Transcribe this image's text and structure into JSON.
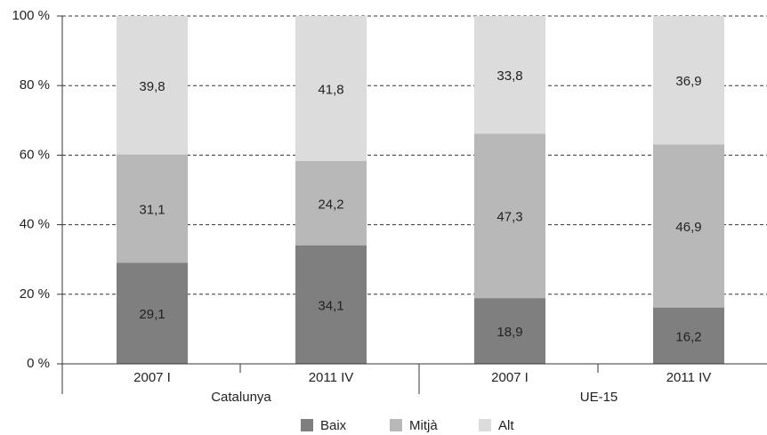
{
  "chart_data": {
    "type": "stacked_bar",
    "categories": [
      "2007 I",
      "2011 IV",
      "2007 I",
      "2011 IV"
    ],
    "group_labels": [
      "Catalunya",
      "UE-15"
    ],
    "series": [
      {
        "name": "Baix",
        "color": "#7f7f7f",
        "values": [
          29.1,
          34.1,
          18.9,
          16.2
        ],
        "value_labels": [
          "29,1",
          "34,1",
          "18,9",
          "16,2"
        ]
      },
      {
        "name": "Mitjà",
        "color": "#b8b8b9",
        "values": [
          31.1,
          24.2,
          47.3,
          46.9
        ],
        "value_labels": [
          "31,1",
          "24,2",
          "47,3",
          "46,9"
        ]
      },
      {
        "name": "Alt",
        "color": "#dcdcdd",
        "values": [
          39.8,
          41.8,
          33.8,
          36.9
        ],
        "value_labels": [
          "39,8",
          "41,8",
          "33,8",
          "36,9"
        ]
      }
    ],
    "ylim": [
      0,
      100
    ],
    "yticks": [
      {
        "value": 0,
        "label": "0 %"
      },
      {
        "value": 20,
        "label": "20 %"
      },
      {
        "value": 40,
        "label": "40 %"
      },
      {
        "value": 60,
        "label": "60 %"
      },
      {
        "value": 80,
        "label": "80 %"
      },
      {
        "value": 100,
        "label": "100 %"
      }
    ],
    "grid": true,
    "legend": "bottom"
  }
}
